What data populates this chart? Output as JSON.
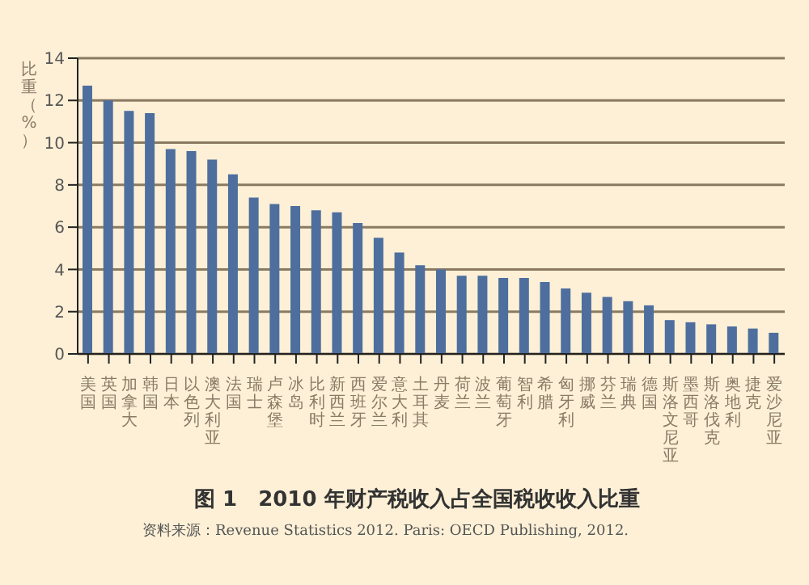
{
  "chart_data": {
    "type": "bar",
    "title": "图 1　2010 年财产税收入占全国税收收入比重",
    "ylabel": "比重（%）",
    "annotations": [
      "资料来源：Revenue Statistics 2012. Paris: OECD Publishing, 2012."
    ],
    "categories": [
      "美国",
      "英国",
      "加拿大",
      "韩国",
      "日本",
      "以色列",
      "澳大利亚",
      "法国",
      "瑞士",
      "卢森堡",
      "冰岛",
      "比利时",
      "新西兰",
      "西班牙",
      "爱尔兰",
      "意大利",
      "土耳其",
      "丹麦",
      "荷兰",
      "波兰",
      "葡萄牙",
      "智利",
      "希腊",
      "匈牙利",
      "挪威",
      "芬兰",
      "瑞典",
      "德国",
      "斯洛文尼亚",
      "墨西哥",
      "斯洛伐克",
      "奥地利",
      "捷克",
      "爱沙尼亚"
    ],
    "values": [
      12.7,
      12.0,
      11.5,
      11.4,
      9.7,
      9.6,
      9.2,
      8.5,
      7.4,
      7.1,
      7.0,
      6.8,
      6.7,
      6.2,
      5.5,
      4.8,
      4.2,
      4.0,
      3.7,
      3.7,
      3.6,
      3.6,
      3.4,
      3.1,
      2.9,
      2.7,
      2.5,
      2.3,
      1.6,
      1.5,
      1.4,
      1.3,
      1.2,
      1.0
    ],
    "color": "#4e6e9e",
    "ylim": [
      0,
      14
    ],
    "yticks": [
      0,
      2,
      4,
      6,
      8,
      10,
      12,
      14
    ],
    "grid": "y"
  }
}
